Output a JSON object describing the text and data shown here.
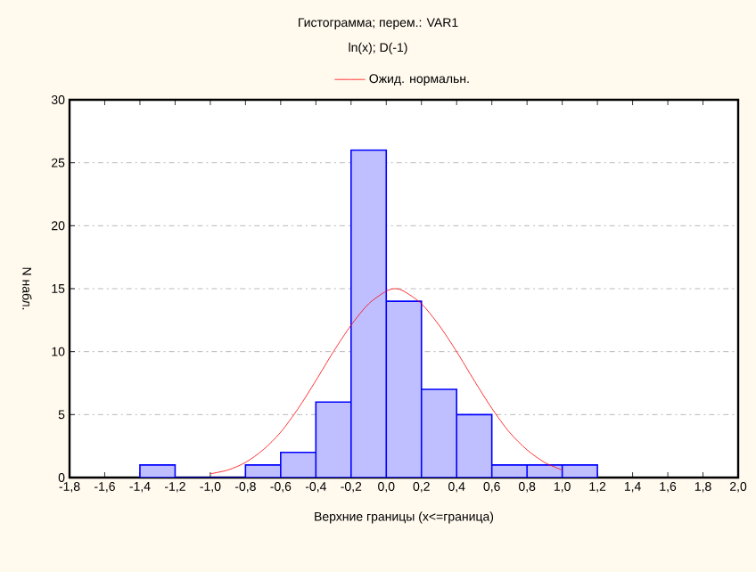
{
  "chart_data": {
    "type": "histogram",
    "title": "Гистограмма; перем.: VAR1",
    "subtitle": "ln(x); D(-1)",
    "xlabel": "Верхние границы (x<=граница)",
    "ylabel": "N набл.",
    "bins": [
      -1.4,
      -1.2,
      -1.0,
      -0.8,
      -0.6,
      -0.4,
      -0.2,
      0.0,
      0.2,
      0.4,
      0.6,
      0.8,
      1.0,
      1.2
    ],
    "values": [
      1,
      0,
      0,
      1,
      2,
      6,
      26,
      14,
      7,
      5,
      1,
      1,
      1
    ],
    "color": "#bfbfff",
    "series": [
      {
        "type": "line",
        "name": "Ожид. нормальн.",
        "color": "#ff0000",
        "x": [
          -1.0,
          -0.9,
          -0.8,
          -0.7,
          -0.6,
          -0.5,
          -0.4,
          -0.3,
          -0.2,
          -0.1,
          0.0,
          0.05,
          0.1,
          0.2,
          0.3,
          0.4,
          0.5,
          0.6,
          0.7,
          0.8,
          0.9,
          1.0
        ],
        "values": [
          0.3,
          0.6,
          1.2,
          2.2,
          3.6,
          5.5,
          7.7,
          10.0,
          12.1,
          13.8,
          14.8,
          15,
          14.8,
          13.8,
          12.1,
          10,
          7.7,
          5.5,
          3.6,
          2.2,
          1.2,
          0.6
        ]
      }
    ],
    "xlim": [
      -1.8,
      2.0
    ],
    "xticks": [
      {
        "value": -1.8,
        "label": "-1,8"
      },
      {
        "value": -1.6,
        "label": "-1,6"
      },
      {
        "value": -1.4,
        "label": "-1,4"
      },
      {
        "value": -1.2,
        "label": "-1,2"
      },
      {
        "value": -1.0,
        "label": "-1,0"
      },
      {
        "value": -0.8,
        "label": "-0,8"
      },
      {
        "value": -0.6,
        "label": "-0,6"
      },
      {
        "value": -0.4,
        "label": "-0,4"
      },
      {
        "value": -0.2,
        "label": "-0,2"
      },
      {
        "value": 0.0,
        "label": "0,0"
      },
      {
        "value": 0.2,
        "label": "0,2"
      },
      {
        "value": 0.4,
        "label": "0,4"
      },
      {
        "value": 0.6,
        "label": "0,6"
      },
      {
        "value": 0.8,
        "label": "0,8"
      },
      {
        "value": 1.0,
        "label": "1,0"
      },
      {
        "value": 1.2,
        "label": "1,2"
      },
      {
        "value": 1.4,
        "label": "1,4"
      },
      {
        "value": 1.6,
        "label": "1,6"
      },
      {
        "value": 1.8,
        "label": "1,8"
      },
      {
        "value": 2.0,
        "label": "2,0"
      }
    ],
    "ylim": [
      0,
      30
    ],
    "yticks": [
      0,
      5,
      10,
      15,
      20,
      25,
      30
    ],
    "grid": "y",
    "legend": "top",
    "marker": "none",
    "line_style": "solid"
  }
}
